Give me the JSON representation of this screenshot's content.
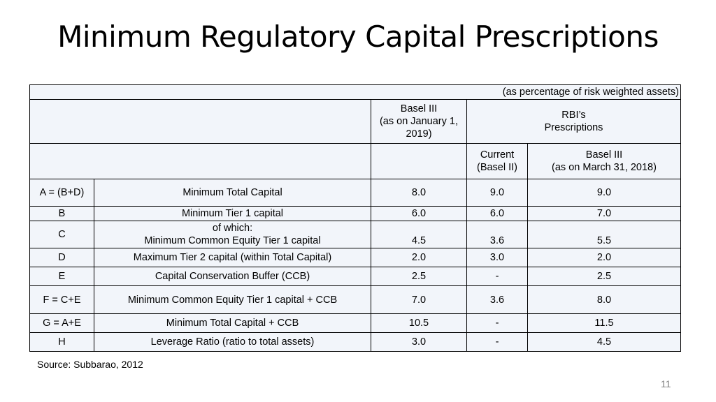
{
  "title": "Minimum Regulatory Capital Prescriptions",
  "table": {
    "note": "(as percentage of risk weighted assets)",
    "header": {
      "basel_iii_line1": "Basel III",
      "basel_iii_line2": "(as on January 1,",
      "basel_iii_line3": "2019)",
      "rbi_line1": "RBI’s",
      "rbi_line2": "Prescriptions",
      "current_line1": "Current",
      "current_line2": "(Basel II)",
      "rbi_basel_line1": "Basel III",
      "rbi_basel_line2": "(as on March 31, 2018)"
    },
    "rows": [
      {
        "code": "A = (B+D)",
        "item": "Minimum Total Capital",
        "basel": "8.0",
        "current": "9.0",
        "rbi": "9.0"
      },
      {
        "code": "B",
        "item": "Minimum Tier 1 capital",
        "basel": "6.0",
        "current": "6.0",
        "rbi": "7.0"
      },
      {
        "code": "C",
        "item_line1": "of which:",
        "item": "Minimum Common Equity Tier 1 capital",
        "basel": "4.5",
        "current": "3.6",
        "rbi": "5.5"
      },
      {
        "code": "D",
        "item": "Maximum Tier 2 capital (within Total Capital)",
        "basel": "2.0",
        "current": "3.0",
        "rbi": "2.0"
      },
      {
        "code": "E",
        "item": "Capital Conservation Buffer (CCB)",
        "basel": "2.5",
        "current": "-",
        "rbi": "2.5"
      },
      {
        "code": "F = C+E",
        "item": "Minimum Common Equity Tier 1 capital + CCB",
        "basel": "7.0",
        "current": "3.6",
        "rbi": "8.0"
      },
      {
        "code": "G = A+E",
        "item": "Minimum Total Capital + CCB",
        "basel": "10.5",
        "current": "-",
        "rbi": "11.5"
      },
      {
        "code": "H",
        "item": "Leverage Ratio (ratio to total assets)",
        "basel": "3.0",
        "current": "-",
        "rbi": "4.5"
      }
    ]
  },
  "source": "Source: Subbarao, 2012",
  "page_number": "11"
}
